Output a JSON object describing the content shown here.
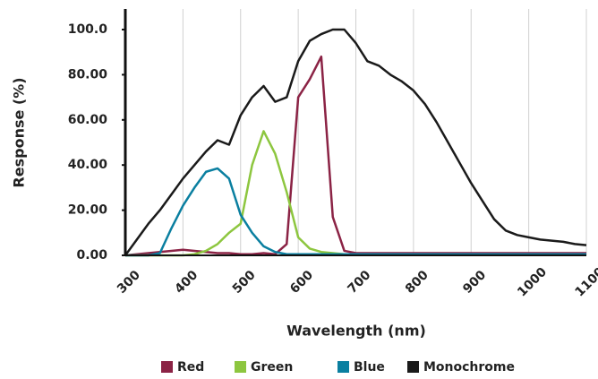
{
  "chart_data": {
    "type": "line",
    "xlabel": "Wavelength (nm)",
    "ylabel": "Response (%)",
    "x": [
      300,
      320,
      340,
      360,
      380,
      400,
      420,
      440,
      460,
      480,
      500,
      520,
      540,
      560,
      580,
      600,
      620,
      640,
      660,
      680,
      700,
      720,
      740,
      760,
      780,
      800,
      820,
      840,
      860,
      880,
      900,
      920,
      940,
      960,
      980,
      1000,
      1020,
      1040,
      1060,
      1080,
      1100
    ],
    "series": [
      {
        "name": "Red",
        "color": "#8b2345",
        "values": [
          0,
          0.5,
          1,
          1.5,
          2,
          2.5,
          2,
          1.5,
          1,
          1,
          0.5,
          0.5,
          1,
          0.5,
          5,
          70,
          78,
          88,
          17,
          2,
          1,
          1,
          1,
          1,
          1,
          1,
          1,
          1,
          1,
          1,
          1,
          1,
          1,
          1,
          1,
          1,
          1,
          1,
          1,
          1,
          1
        ]
      },
      {
        "name": "Green",
        "color": "#8dc63f",
        "values": [
          0,
          0,
          0,
          0,
          0,
          0,
          0.5,
          2,
          5,
          10,
          14,
          40,
          55,
          45,
          28,
          8,
          3,
          1.5,
          1,
          0.5,
          0.5,
          0.5,
          0.5,
          0.5,
          0.5,
          0.5,
          0.5,
          0.5,
          0.5,
          0.5,
          0.5,
          0.5,
          0.5,
          0.5,
          0.5,
          0.5,
          0.5,
          0.5,
          0.5,
          0.5,
          0.5
        ]
      },
      {
        "name": "Blue",
        "color": "#0a7fa0",
        "values": [
          0,
          0,
          0,
          1,
          12,
          22,
          30,
          37,
          38.5,
          34,
          18,
          10,
          4,
          1.5,
          0.5,
          0.5,
          0.5,
          0.5,
          0.5,
          0.5,
          0.5,
          0.5,
          0.5,
          0.5,
          0.5,
          0.5,
          0.5,
          0.5,
          0.5,
          0.5,
          0.5,
          0.5,
          0.5,
          0.5,
          0.5,
          0.5,
          0.5,
          0.5,
          0.5,
          0.5,
          0.5
        ]
      },
      {
        "name": "Monochrome",
        "color": "#1a1a1a",
        "values": [
          0,
          7,
          14,
          20,
          27,
          34,
          40,
          46,
          51,
          49,
          62,
          70,
          75,
          68,
          70,
          86,
          95,
          98,
          100,
          100,
          94,
          86,
          84,
          80,
          77,
          73,
          67,
          59,
          50,
          41,
          32,
          24,
          16,
          11,
          9,
          8,
          7,
          6.5,
          6,
          5,
          4.5
        ]
      }
    ],
    "xlim": [
      300,
      1100
    ],
    "xticks": [
      300,
      400,
      500,
      600,
      700,
      800,
      900,
      1000,
      1100
    ],
    "ylim": [
      0,
      100
    ],
    "yticks": [
      {
        "value": 0,
        "label": "0.00"
      },
      {
        "value": 20,
        "label": "20.00"
      },
      {
        "value": 40,
        "label": "40.00"
      },
      {
        "value": 60,
        "label": "60.00"
      },
      {
        "value": 80,
        "label": "80.00"
      },
      {
        "value": 100,
        "label": "100.0"
      }
    ],
    "grid": "x",
    "legend": "bottom"
  }
}
